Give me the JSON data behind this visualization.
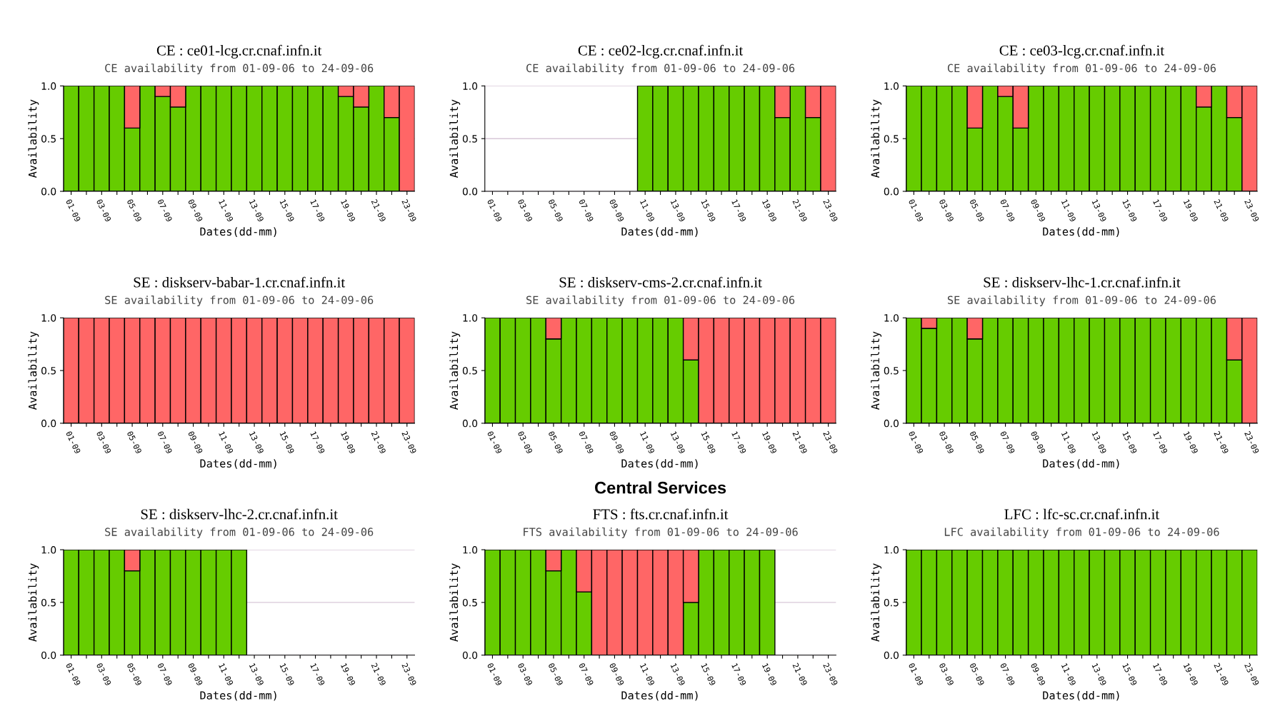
{
  "chart_data": [
    {
      "type": "bar",
      "stacked": true,
      "title": "CE : ce01-lcg.cr.cnaf.infn.it",
      "subtitle": "CE availability from 01-09-06 to 24-09-06",
      "xlabel": "Dates(dd-mm)",
      "ylabel": "Availability",
      "categories": [
        "01-09",
        null,
        "03-09",
        null,
        "05-09",
        null,
        "07-09",
        null,
        "09-09",
        null,
        "11-09",
        null,
        "13-09",
        null,
        "15-09",
        null,
        "17-09",
        null,
        "19-09",
        null,
        "21-09",
        null,
        "23-09"
      ],
      "ylim": [
        0,
        1
      ],
      "yticks": [
        {
          "value": 0,
          "label": "0.0"
        },
        {
          "value": 0.5,
          "label": "0.5"
        },
        {
          "value": 1,
          "label": "1.0"
        }
      ],
      "grid": "y",
      "series": [
        {
          "color": "#66cc00",
          "values": [
            1,
            1,
            1,
            1,
            0.6,
            1,
            0.9,
            0.8,
            1,
            1,
            1,
            1,
            1,
            1,
            1,
            1,
            1,
            1,
            0.9,
            0.8,
            1,
            0.7,
            0
          ]
        },
        {
          "color": "#ff6666",
          "values": [
            0,
            0,
            0,
            0,
            0.4,
            0,
            0.1,
            0.2,
            0,
            0,
            0,
            0,
            0,
            0,
            0,
            0,
            0,
            0,
            0.1,
            0.2,
            0,
            0.3,
            1
          ]
        }
      ]
    },
    {
      "type": "bar",
      "stacked": true,
      "title": "CE : ce02-lcg.cr.cnaf.infn.it",
      "subtitle": "CE availability from 01-09-06 to 24-09-06",
      "xlabel": "Dates(dd-mm)",
      "ylabel": "Availability",
      "categories": [
        "01-09",
        null,
        "03-09",
        null,
        "05-09",
        null,
        "07-09",
        null,
        "09-09",
        null,
        "11-09",
        null,
        "13-09",
        null,
        "15-09",
        null,
        "17-09",
        null,
        "19-09",
        null,
        "21-09",
        null,
        "23-09"
      ],
      "ylim": [
        0,
        1
      ],
      "yticks": [
        {
          "value": 0,
          "label": "0.0"
        },
        {
          "value": 0.5,
          "label": "0.5"
        },
        {
          "value": 1,
          "label": "1.0"
        }
      ],
      "grid": "y",
      "series": [
        {
          "color": "#66cc00",
          "values": [
            null,
            null,
            null,
            null,
            null,
            null,
            null,
            null,
            null,
            null,
            1,
            1,
            1,
            1,
            1,
            1,
            1,
            1,
            1,
            0.7,
            1,
            0.7,
            0
          ]
        },
        {
          "color": "#ff6666",
          "values": [
            null,
            null,
            null,
            null,
            null,
            null,
            null,
            null,
            null,
            null,
            0,
            0,
            0,
            0,
            0,
            0,
            0,
            0,
            0,
            0.3,
            0,
            0.3,
            1
          ]
        }
      ]
    },
    {
      "type": "bar",
      "stacked": true,
      "title": "CE : ce03-lcg.cr.cnaf.infn.it",
      "subtitle": "CE availability from 01-09-06 to 24-09-06",
      "xlabel": "Dates(dd-mm)",
      "ylabel": "Availability",
      "categories": [
        "01-09",
        null,
        "03-09",
        null,
        "05-09",
        null,
        "07-09",
        null,
        "09-09",
        null,
        "11-09",
        null,
        "13-09",
        null,
        "15-09",
        null,
        "17-09",
        null,
        "19-09",
        null,
        "21-09",
        null,
        "23-09"
      ],
      "ylim": [
        0,
        1
      ],
      "yticks": [
        {
          "value": 0,
          "label": "0.0"
        },
        {
          "value": 0.5,
          "label": "0.5"
        },
        {
          "value": 1,
          "label": "1.0"
        }
      ],
      "grid": "y",
      "series": [
        {
          "color": "#66cc00",
          "values": [
            1,
            1,
            1,
            1,
            0.6,
            1,
            0.9,
            0.6,
            1,
            1,
            1,
            1,
            1,
            1,
            1,
            1,
            1,
            1,
            1,
            0.8,
            1,
            0.7,
            0
          ]
        },
        {
          "color": "#ff6666",
          "values": [
            0,
            0,
            0,
            0,
            0.4,
            0,
            0.1,
            0.4,
            0,
            0,
            0,
            0,
            0,
            0,
            0,
            0,
            0,
            0,
            0,
            0.2,
            0,
            0.3,
            1
          ]
        }
      ]
    },
    {
      "type": "bar",
      "stacked": true,
      "title": "SE : diskserv-babar-1.cr.cnaf.infn.it",
      "subtitle": "SE availability from 01-09-06 to 24-09-06",
      "xlabel": "Dates(dd-mm)",
      "ylabel": "Availability",
      "categories": [
        "01-09",
        null,
        "03-09",
        null,
        "05-09",
        null,
        "07-09",
        null,
        "09-09",
        null,
        "11-09",
        null,
        "13-09",
        null,
        "15-09",
        null,
        "17-09",
        null,
        "19-09",
        null,
        "21-09",
        null,
        "23-09"
      ],
      "ylim": [
        0,
        1
      ],
      "yticks": [
        {
          "value": 0,
          "label": "0.0"
        },
        {
          "value": 0.5,
          "label": "0.5"
        },
        {
          "value": 1,
          "label": "1.0"
        }
      ],
      "grid": "y",
      "series": [
        {
          "color": "#66cc00",
          "values": [
            0,
            0,
            0,
            0,
            0,
            0,
            0,
            0,
            0,
            0,
            0,
            0,
            0,
            0,
            0,
            0,
            0,
            0,
            0,
            0,
            0,
            0,
            0
          ]
        },
        {
          "color": "#ff6666",
          "values": [
            1,
            1,
            1,
            1,
            1,
            1,
            1,
            1,
            1,
            1,
            1,
            1,
            1,
            1,
            1,
            1,
            1,
            1,
            1,
            1,
            1,
            1,
            1
          ]
        }
      ]
    },
    {
      "type": "bar",
      "stacked": true,
      "title": "SE : diskserv-cms-2.cr.cnaf.infn.it",
      "subtitle": "SE availability from 01-09-06 to 24-09-06",
      "xlabel": "Dates(dd-mm)",
      "ylabel": "Availability",
      "categories": [
        "01-09",
        null,
        "03-09",
        null,
        "05-09",
        null,
        "07-09",
        null,
        "09-09",
        null,
        "11-09",
        null,
        "13-09",
        null,
        "15-09",
        null,
        "17-09",
        null,
        "19-09",
        null,
        "21-09",
        null,
        "23-09"
      ],
      "ylim": [
        0,
        1
      ],
      "yticks": [
        {
          "value": 0,
          "label": "0.0"
        },
        {
          "value": 0.5,
          "label": "0.5"
        },
        {
          "value": 1,
          "label": "1.0"
        }
      ],
      "grid": "y",
      "series": [
        {
          "color": "#66cc00",
          "values": [
            1,
            1,
            1,
            1,
            0.8,
            1,
            1,
            1,
            1,
            1,
            1,
            1,
            1,
            0.6,
            0,
            0,
            0,
            0,
            0,
            0,
            0,
            0,
            0
          ]
        },
        {
          "color": "#ff6666",
          "values": [
            0,
            0,
            0,
            0,
            0.2,
            0,
            0,
            0,
            0,
            0,
            0,
            0,
            0,
            0.4,
            1,
            1,
            1,
            1,
            1,
            1,
            1,
            1,
            1
          ]
        }
      ]
    },
    {
      "type": "bar",
      "stacked": true,
      "title": "SE : diskserv-lhc-1.cr.cnaf.infn.it",
      "subtitle": "SE availability from 01-09-06 to 24-09-06",
      "xlabel": "Dates(dd-mm)",
      "ylabel": "Availability",
      "categories": [
        "01-09",
        null,
        "03-09",
        null,
        "05-09",
        null,
        "07-09",
        null,
        "09-09",
        null,
        "11-09",
        null,
        "13-09",
        null,
        "15-09",
        null,
        "17-09",
        null,
        "19-09",
        null,
        "21-09",
        null,
        "23-09"
      ],
      "ylim": [
        0,
        1
      ],
      "yticks": [
        {
          "value": 0,
          "label": "0.0"
        },
        {
          "value": 0.5,
          "label": "0.5"
        },
        {
          "value": 1,
          "label": "1.0"
        }
      ],
      "grid": "y",
      "series": [
        {
          "color": "#66cc00",
          "values": [
            1,
            0.9,
            1,
            1,
            0.8,
            1,
            1,
            1,
            1,
            1,
            1,
            1,
            1,
            1,
            1,
            1,
            1,
            1,
            1,
            1,
            1,
            0.6,
            0
          ]
        },
        {
          "color": "#ff6666",
          "values": [
            0,
            0.1,
            0,
            0,
            0.2,
            0,
            0,
            0,
            0,
            0,
            0,
            0,
            0,
            0,
            0,
            0,
            0,
            0,
            0,
            0,
            0,
            0.4,
            1
          ]
        }
      ]
    },
    {
      "type": "bar",
      "stacked": true,
      "title": "SE : diskserv-lhc-2.cr.cnaf.infn.it",
      "subtitle": "SE availability from 01-09-06 to 24-09-06",
      "xlabel": "Dates(dd-mm)",
      "ylabel": "Availability",
      "categories": [
        "01-09",
        null,
        "03-09",
        null,
        "05-09",
        null,
        "07-09",
        null,
        "09-09",
        null,
        "11-09",
        null,
        "13-09",
        null,
        "15-09",
        null,
        "17-09",
        null,
        "19-09",
        null,
        "21-09",
        null,
        "23-09"
      ],
      "ylim": [
        0,
        1
      ],
      "yticks": [
        {
          "value": 0,
          "label": "0.0"
        },
        {
          "value": 0.5,
          "label": "0.5"
        },
        {
          "value": 1,
          "label": "1.0"
        }
      ],
      "grid": "y",
      "series": [
        {
          "color": "#66cc00",
          "values": [
            1,
            1,
            1,
            1,
            0.8,
            1,
            1,
            1,
            1,
            1,
            1,
            1,
            null,
            null,
            null,
            null,
            null,
            null,
            null,
            null,
            null,
            null,
            null
          ]
        },
        {
          "color": "#ff6666",
          "values": [
            0,
            0,
            0,
            0,
            0.2,
            0,
            0,
            0,
            0,
            0,
            0,
            0,
            null,
            null,
            null,
            null,
            null,
            null,
            null,
            null,
            null,
            null,
            null
          ]
        }
      ]
    },
    {
      "type": "bar",
      "stacked": true,
      "title": "FTS : fts.cr.cnaf.infn.it",
      "subtitle": "FTS availability from 01-09-06 to 24-09-06",
      "xlabel": "Dates(dd-mm)",
      "ylabel": "Availability",
      "annotations": [
        "Central Services"
      ],
      "categories": [
        "01-09",
        null,
        "03-09",
        null,
        "05-09",
        null,
        "07-09",
        null,
        "09-09",
        null,
        "11-09",
        null,
        "13-09",
        null,
        "15-09",
        null,
        "17-09",
        null,
        "19-09",
        null,
        "21-09",
        null,
        "23-09"
      ],
      "ylim": [
        0,
        1
      ],
      "yticks": [
        {
          "value": 0,
          "label": "0.0"
        },
        {
          "value": 0.5,
          "label": "0.5"
        },
        {
          "value": 1,
          "label": "1.0"
        }
      ],
      "grid": "y",
      "series": [
        {
          "color": "#66cc00",
          "values": [
            1,
            1,
            1,
            1,
            0.8,
            1,
            0.6,
            0,
            0,
            0,
            0,
            0,
            0,
            0.5,
            1,
            1,
            1,
            1,
            1,
            null,
            null,
            null,
            null
          ]
        },
        {
          "color": "#ff6666",
          "values": [
            0,
            0,
            0,
            0,
            0.2,
            0,
            0.4,
            1,
            1,
            1,
            1,
            1,
            1,
            0.5,
            0,
            0,
            0,
            0,
            0,
            null,
            null,
            null,
            null
          ]
        }
      ]
    },
    {
      "type": "bar",
      "stacked": true,
      "title": "LFC : lfc-sc.cr.cnaf.infn.it",
      "subtitle": "LFC availability from 01-09-06 to 24-09-06",
      "xlabel": "Dates(dd-mm)",
      "ylabel": "Availability",
      "categories": [
        "01-09",
        null,
        "03-09",
        null,
        "05-09",
        null,
        "07-09",
        null,
        "09-09",
        null,
        "11-09",
        null,
        "13-09",
        null,
        "15-09",
        null,
        "17-09",
        null,
        "19-09",
        null,
        "21-09",
        null,
        "23-09"
      ],
      "ylim": [
        0,
        1
      ],
      "yticks": [
        {
          "value": 0,
          "label": "0.0"
        },
        {
          "value": 0.5,
          "label": "0.5"
        },
        {
          "value": 1,
          "label": "1.0"
        }
      ],
      "grid": "y",
      "series": [
        {
          "color": "#66cc00",
          "values": [
            1,
            1,
            1,
            1,
            1,
            1,
            1,
            1,
            1,
            1,
            1,
            1,
            1,
            1,
            1,
            1,
            1,
            1,
            1,
            1,
            1,
            1,
            1
          ]
        },
        {
          "color": "#ff6666",
          "values": [
            0,
            0,
            0,
            0,
            0,
            0,
            0,
            0,
            0,
            0,
            0,
            0,
            0,
            0,
            0,
            0,
            0,
            0,
            0,
            0,
            0,
            0,
            0
          ]
        }
      ]
    }
  ]
}
